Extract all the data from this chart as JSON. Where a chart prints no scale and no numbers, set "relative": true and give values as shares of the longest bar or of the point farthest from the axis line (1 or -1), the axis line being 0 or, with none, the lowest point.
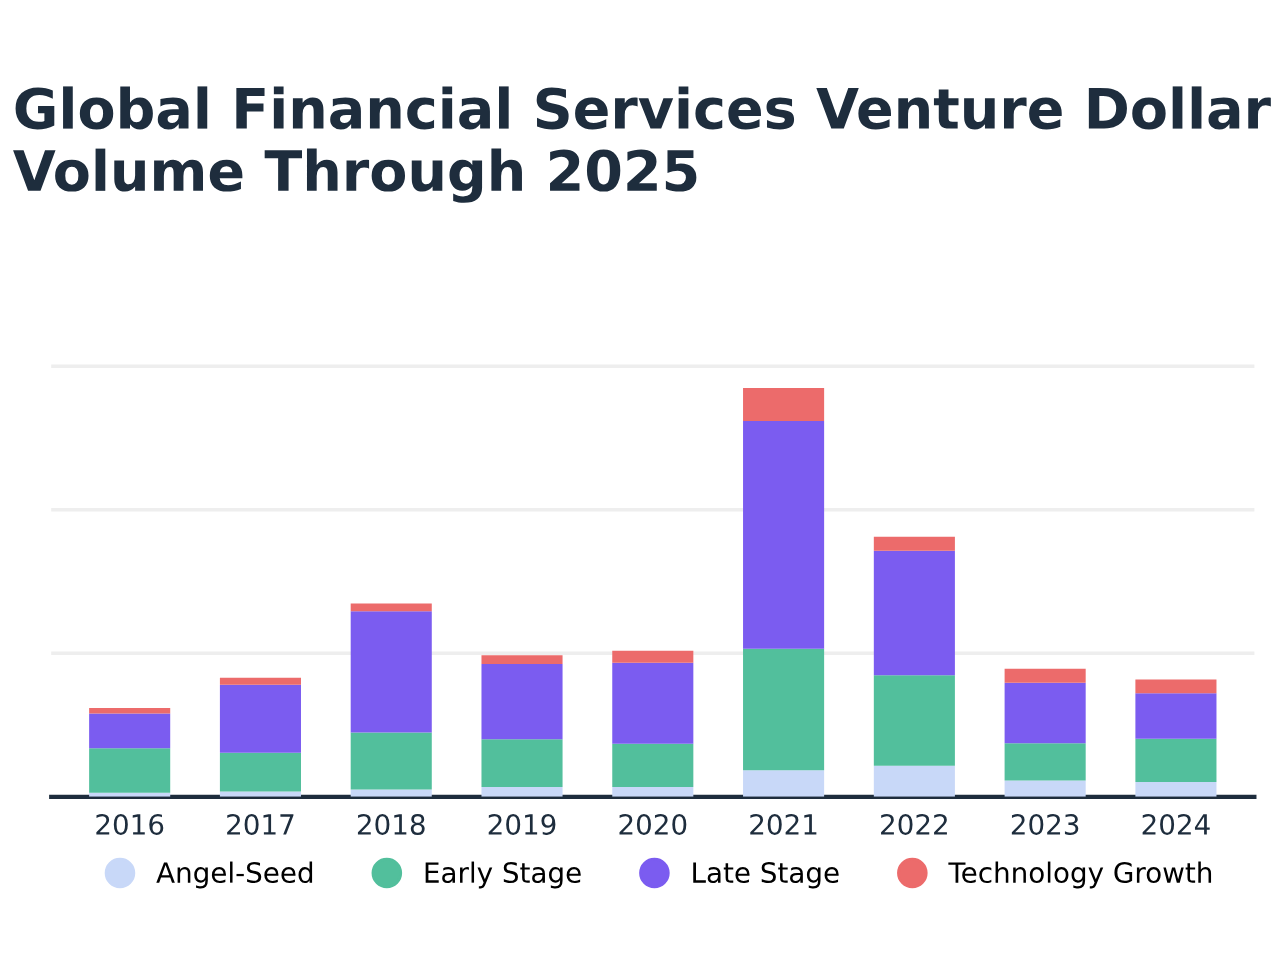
{
  "chart_data": {
    "type": "bar",
    "title": "Global Financial Services Venture Dollar Volume Through 2025",
    "categories": [
      "2016",
      "2017",
      "2018",
      "2019",
      "2020",
      "2021",
      "2022",
      "2023",
      "2024"
    ],
    "stacked": true,
    "relative": true,
    "legend": "bottom",
    "ref_lines": [
      {
        "axis": "y",
        "value": 0.351,
        "color": "#eeeeee"
      },
      {
        "axis": "y",
        "value": 0.702,
        "color": "#eeeeee"
      },
      {
        "axis": "y",
        "value": 1.053,
        "color": "#eeeeee"
      }
    ],
    "series": [
      {
        "name": "Angel-Seed",
        "color": "#c8d8f8",
        "values": [
          0.01,
          0.013,
          0.018,
          0.024,
          0.024,
          0.065,
          0.076,
          0.04,
          0.036
        ]
      },
      {
        "name": "Early Stage",
        "color": "#52bf9c",
        "values": [
          0.109,
          0.095,
          0.139,
          0.117,
          0.106,
          0.297,
          0.221,
          0.091,
          0.106
        ]
      },
      {
        "name": "Late Stage",
        "color": "#7b5cf0",
        "values": [
          0.085,
          0.166,
          0.297,
          0.184,
          0.198,
          0.557,
          0.305,
          0.148,
          0.111
        ]
      },
      {
        "name": "Technology Growth",
        "color": "#ec6b6b",
        "values": [
          0.013,
          0.017,
          0.019,
          0.021,
          0.029,
          0.081,
          0.034,
          0.034,
          0.034
        ]
      }
    ]
  }
}
